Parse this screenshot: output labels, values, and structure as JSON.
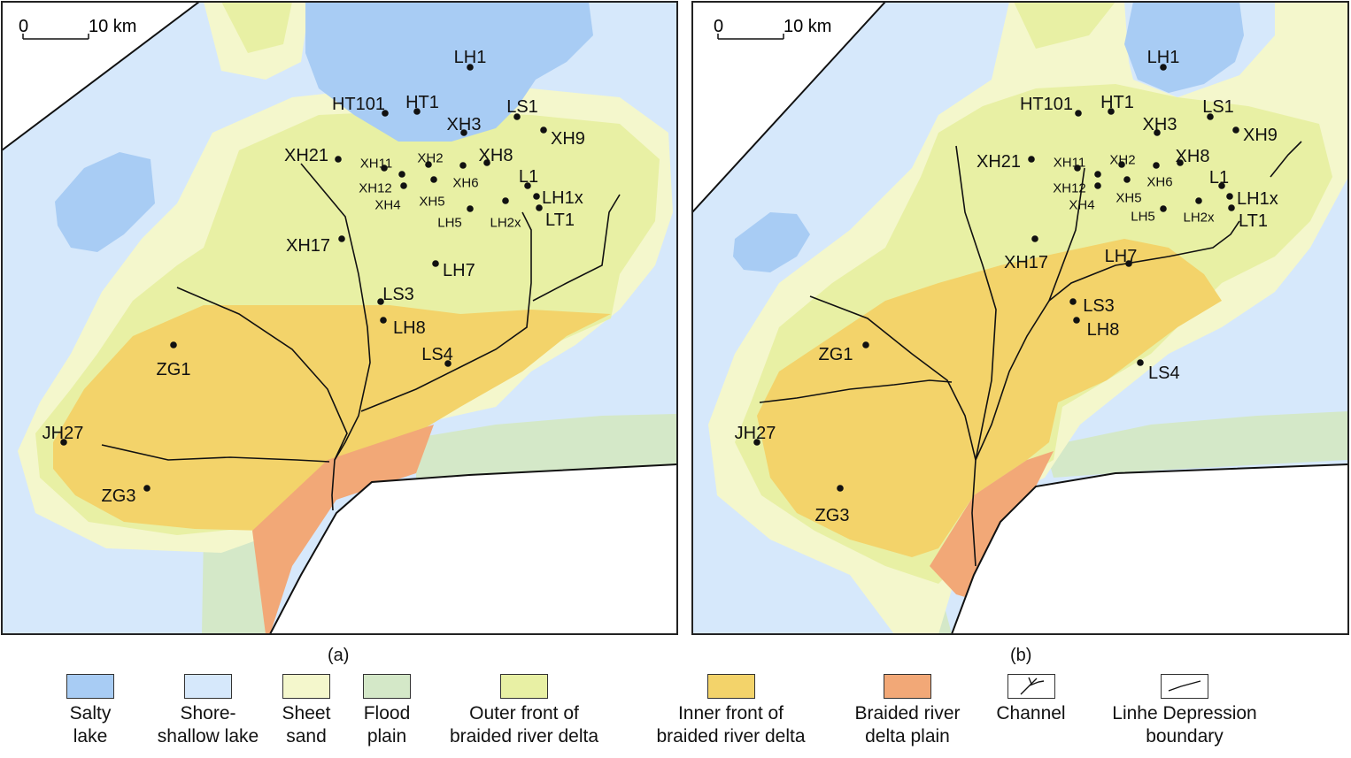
{
  "colors": {
    "salty_lake": "#a8ccf4",
    "shore_shallow_lake": "#d6e8fb",
    "sheet_sand": "#f4f7cc",
    "flood_plain": "#d4e8c8",
    "outer_front": "#e8f0a4",
    "inner_front": "#f3d36a",
    "braided_plain": "#f2a877",
    "boundary": "#111111"
  },
  "panels": [
    {
      "caption": "(a)",
      "scale": {
        "zero": "0",
        "label": "10 km"
      },
      "wells": [
        "LH1",
        "HT101",
        "HT1",
        "LS1",
        "XH3",
        "XH9",
        "XH21",
        "XH11",
        "XH2",
        "XH8",
        "XH12",
        "XH6",
        "L1",
        "XH4",
        "XH5",
        "LH1x",
        "LH5",
        "LH2x",
        "LT1",
        "XH17",
        "LH7",
        "LS3",
        "LH8",
        "ZG1",
        "LS4",
        "JH27",
        "ZG3"
      ]
    },
    {
      "caption": "(b)",
      "scale": {
        "zero": "0",
        "label": "10 km"
      },
      "wells": [
        "LH1",
        "HT101",
        "HT1",
        "LS1",
        "XH3",
        "XH9",
        "XH21",
        "XH11",
        "XH2",
        "XH8",
        "XH12",
        "XH6",
        "L1",
        "XH4",
        "XH5",
        "LH1x",
        "LH5",
        "LH2x",
        "LT1",
        "XH17",
        "LH7",
        "LS3",
        "LH8",
        "ZG1",
        "LS4",
        "JH27",
        "ZG3"
      ]
    }
  ],
  "legend": [
    {
      "label": "Salty\nlake",
      "swatch": "salty-lake",
      "color": "#a8ccf4"
    },
    {
      "label": "Shore-\nshallow lake",
      "swatch": "shore-shallow-lake",
      "color": "#d6e8fb"
    },
    {
      "label": "Sheet\nsand",
      "swatch": "sheet-sand",
      "color": "#f4f7cc"
    },
    {
      "label": "Flood\nplain",
      "swatch": "flood-plain",
      "color": "#d4e8c8"
    },
    {
      "label": "Outer front of\nbraided river delta",
      "swatch": "outer-front",
      "color": "#e8f0a4"
    },
    {
      "label": "Inner front of\nbraided river delta",
      "swatch": "inner-front",
      "color": "#f3d36a"
    },
    {
      "label": "Braided river\ndelta plain",
      "swatch": "braided-plain",
      "color": "#f2a877"
    },
    {
      "label": "Channel",
      "swatch": "channel-icon",
      "color": "#ffffff"
    },
    {
      "label": "Linhe Depression\nboundary",
      "swatch": "boundary-icon",
      "color": "#ffffff"
    }
  ]
}
